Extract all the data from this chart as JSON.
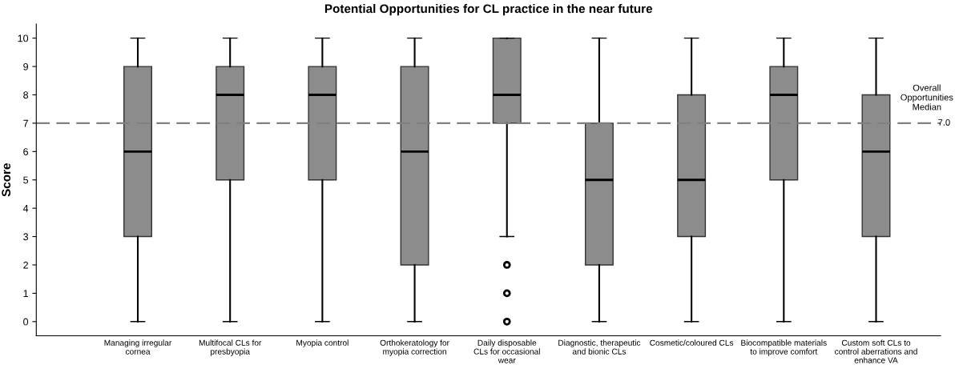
{
  "chart_data": {
    "type": "box",
    "title": "Potential Opportunities for CL practice in the near future",
    "ylabel": "Score",
    "categories": [
      "Managing irregular\ncornea",
      "Multifocal CLs for\npresbyopia",
      "Myopia control",
      "Orthokeratology for\nmyopia correction",
      "Daily disposable\nCLs for occasional\nwear",
      "Diagnostic, therapeutic\nand bionic CLs",
      "Cosmetic/coloured CLs",
      "Biocompatible materials\nto improve comfort",
      "Custom soft CLs to\ncontrol aberrations and\nenhance VA"
    ],
    "color": "#8c8c8c",
    "boxes": [
      {
        "low": 0,
        "q1": 3,
        "median": 6,
        "q3": 9,
        "high": 10
      },
      {
        "low": 0,
        "q1": 5,
        "median": 8,
        "q3": 9,
        "high": 10
      },
      {
        "low": 0,
        "q1": 5,
        "median": 8,
        "q3": 9,
        "high": 10
      },
      {
        "low": 0,
        "q1": 2,
        "median": 6,
        "q3": 9,
        "high": 10
      },
      {
        "low": 3,
        "q1": 7,
        "median": 8,
        "q3": 10,
        "high": 10,
        "outliers": [
          0,
          1,
          2
        ]
      },
      {
        "low": 0,
        "q1": 2,
        "median": 5,
        "q3": 7,
        "high": 10
      },
      {
        "low": 0,
        "q1": 3,
        "median": 5,
        "q3": 8,
        "high": 10
      },
      {
        "low": 0,
        "q1": 5,
        "median": 8,
        "q3": 9,
        "high": 10
      },
      {
        "low": 0,
        "q1": 3,
        "median": 6,
        "q3": 8,
        "high": 10
      }
    ],
    "ylim": [
      -0.5,
      10.5
    ],
    "yticks": [
      0,
      1,
      2,
      3,
      4,
      5,
      6,
      7,
      8,
      9,
      10
    ],
    "ref_lines": [
      {
        "axis": "y",
        "value": 7,
        "label": "Overall\nOpportunities\nMedian",
        "color": "#808080",
        "line_style": "dashed"
      }
    ],
    "annotations": [
      {
        "text": "7.0",
        "y": 7
      }
    ],
    "grid": false,
    "legend": false
  }
}
